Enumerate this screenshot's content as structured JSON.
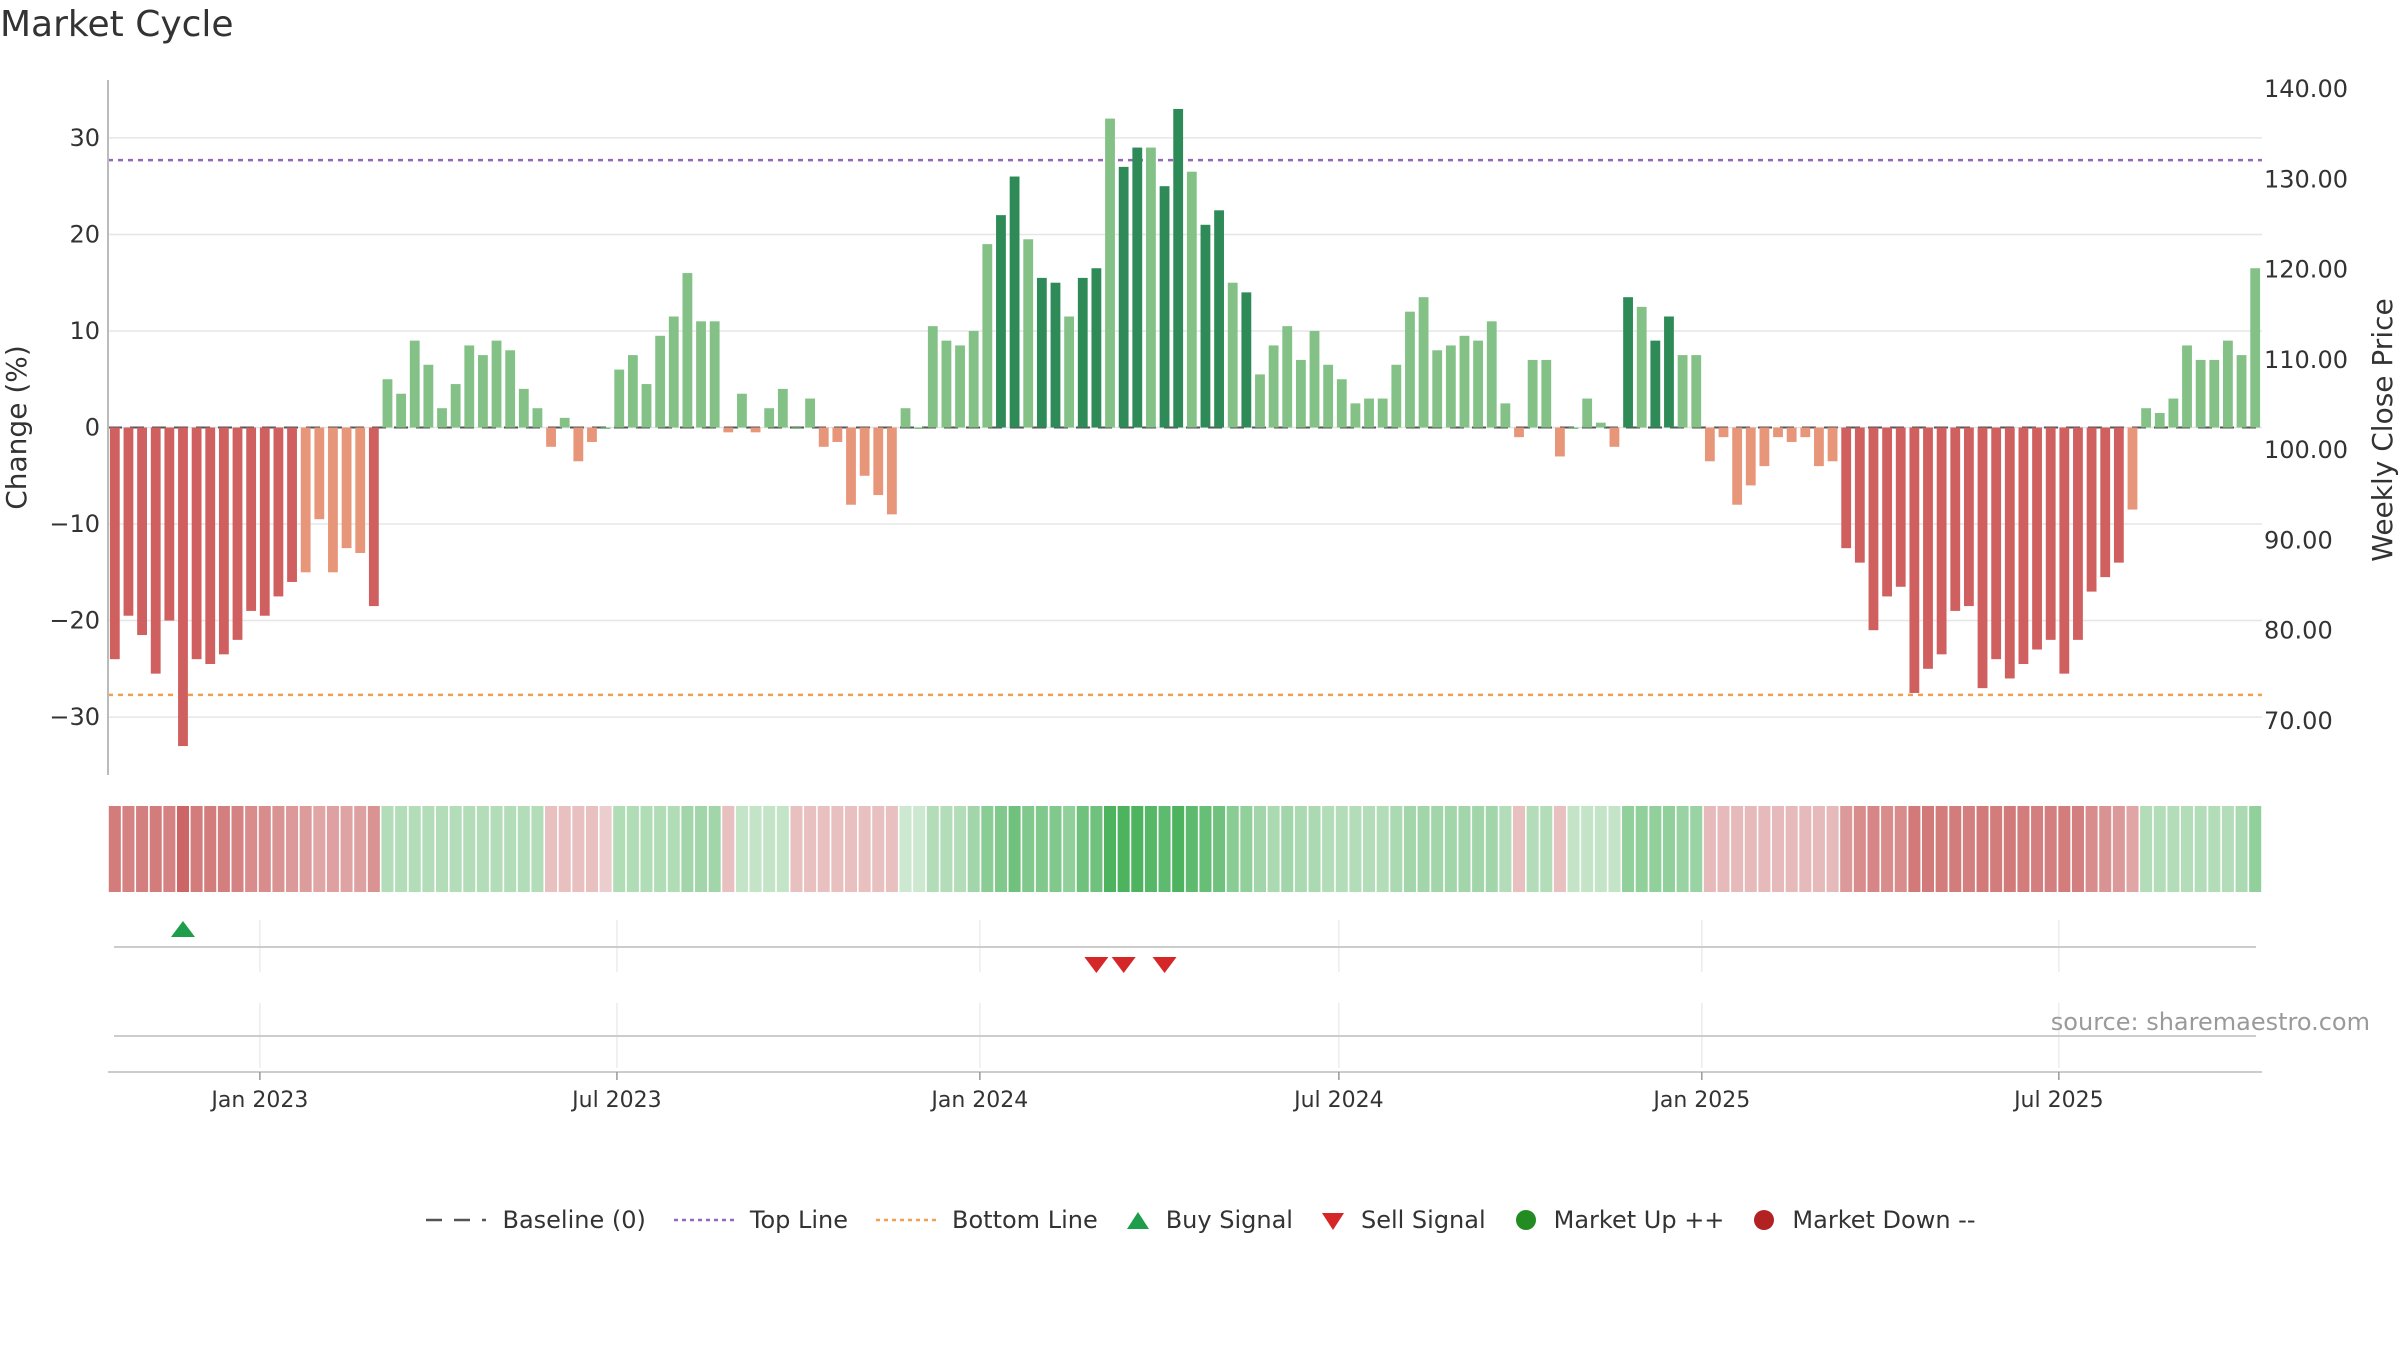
{
  "chart_data": {
    "type": "bar",
    "title": "Market Cycle",
    "ylabel": "Change (%)",
    "y2label": "Weekly Close Price",
    "ylim": [
      -36,
      36
    ],
    "y2lim": [
      64,
      141
    ],
    "yticks": [
      -30,
      -20,
      -10,
      0,
      10,
      20,
      30
    ],
    "yticklabels": [
      "−30",
      "−20",
      "−10",
      "0",
      "10",
      "20",
      "30"
    ],
    "y2ticks": [
      "70.00",
      "80.00",
      "90.00",
      "100.00",
      "110.00",
      "120.00",
      "130.00",
      "140.00"
    ],
    "top_line": 27.7,
    "bottom_line": -27.7,
    "x_start": "2022-10-16",
    "x_end": "2025-10-12",
    "xticks": [
      {
        "date": "2023-01-01",
        "label": "Jan 2023"
      },
      {
        "date": "2023-07-01",
        "label": "Jul 2023"
      },
      {
        "date": "2024-01-01",
        "label": "Jan 2024"
      },
      {
        "date": "2024-07-01",
        "label": "Jul 2024"
      },
      {
        "date": "2025-01-01",
        "label": "Jan 2025"
      },
      {
        "date": "2025-07-01",
        "label": "Jul 2025"
      }
    ],
    "grid": true,
    "legend_position": "bottom-center",
    "values": [
      -24,
      -19.5,
      -21.5,
      -25.5,
      -20,
      -33,
      -24,
      -24.5,
      -23.5,
      -22,
      -19,
      -19.5,
      -17.5,
      -16,
      -15,
      -9.5,
      -15,
      -12.5,
      -13,
      -18.5,
      5,
      3.5,
      9,
      6.5,
      2,
      4.5,
      8.5,
      7.5,
      9,
      8,
      4,
      2,
      -2,
      1,
      -3.5,
      -1.5,
      0,
      6,
      7.5,
      4.5,
      9.5,
      11.5,
      16,
      11,
      11,
      -0.5,
      3.5,
      -0.5,
      2,
      4,
      0,
      3,
      -2,
      -1.5,
      -8,
      -5,
      -7,
      -9,
      2,
      0,
      10.5,
      9,
      8.5,
      10,
      19,
      22,
      26,
      19.5,
      15.5,
      15,
      11.5,
      15.5,
      16.5,
      32,
      27,
      29,
      29,
      25,
      33,
      26.5,
      21,
      22.5,
      15,
      14,
      5.5,
      8.5,
      10.5,
      7,
      10,
      6.5,
      5,
      2.5,
      3,
      3,
      6.5,
      12,
      13.5,
      8,
      8.5,
      9.5,
      9,
      11,
      2.5,
      -1,
      7,
      7,
      -3,
      0,
      3,
      0.5,
      -2,
      13.5,
      12.5,
      9,
      11.5,
      7.5,
      7.5,
      -3.5,
      -1,
      -8,
      -6,
      -4,
      -1,
      -1.5,
      -1,
      -4,
      -3.5,
      -12.5,
      -14,
      -21,
      -17.5,
      -16.5,
      -27.5,
      -25,
      -23.5,
      -19,
      -18.5,
      -27,
      -24,
      -26,
      -24.5,
      -23,
      -22,
      -25.5,
      -22,
      -17,
      -15.5,
      -14,
      -8.5,
      2,
      1.5,
      3,
      8.5,
      7,
      7,
      9,
      7.5,
      16.5
    ],
    "strip_values": [
      -0.72,
      -0.68,
      -0.7,
      -0.72,
      -0.68,
      -0.9,
      -0.72,
      -0.72,
      -0.7,
      -0.68,
      -0.6,
      -0.6,
      -0.55,
      -0.5,
      -0.48,
      -0.4,
      -0.45,
      -0.42,
      -0.44,
      -0.55,
      0.3,
      0.3,
      0.3,
      0.3,
      0.3,
      0.3,
      0.3,
      0.3,
      0.3,
      0.3,
      0.3,
      0.3,
      -0.2,
      -0.2,
      -0.2,
      -0.2,
      -0.1,
      0.32,
      0.32,
      0.32,
      0.32,
      0.32,
      0.4,
      0.4,
      0.4,
      -0.2,
      0.2,
      0.2,
      0.2,
      0.2,
      -0.2,
      -0.2,
      -0.2,
      -0.2,
      -0.2,
      -0.2,
      -0.2,
      -0.2,
      0.15,
      0.15,
      0.3,
      0.3,
      0.3,
      0.4,
      0.55,
      0.6,
      0.7,
      0.6,
      0.6,
      0.6,
      0.5,
      0.7,
      0.7,
      0.9,
      0.9,
      0.9,
      0.85,
      0.8,
      0.9,
      0.8,
      0.75,
      0.7,
      0.55,
      0.5,
      0.4,
      0.35,
      0.4,
      0.35,
      0.35,
      0.3,
      0.3,
      0.3,
      0.3,
      0.3,
      0.35,
      0.4,
      0.4,
      0.4,
      0.4,
      0.4,
      0.4,
      0.4,
      0.3,
      -0.2,
      0.3,
      0.3,
      -0.2,
      0.2,
      0.2,
      0.2,
      0.2,
      0.5,
      0.5,
      0.5,
      0.5,
      0.45,
      0.45,
      -0.25,
      -0.25,
      -0.25,
      -0.25,
      -0.25,
      -0.25,
      -0.25,
      -0.25,
      -0.25,
      -0.25,
      -0.5,
      -0.6,
      -0.65,
      -0.6,
      -0.6,
      -0.75,
      -0.75,
      -0.72,
      -0.72,
      -0.7,
      -0.75,
      -0.72,
      -0.75,
      -0.72,
      -0.7,
      -0.7,
      -0.72,
      -0.7,
      -0.6,
      -0.55,
      -0.5,
      -0.4,
      0.3,
      0.3,
      0.3,
      0.3,
      0.3,
      0.3,
      0.3,
      0.35,
      0.5
    ],
    "buy_signals": [
      5
    ],
    "sell_signals": [
      72,
      74,
      77
    ],
    "source": "source: sharemaestro.com",
    "colors": {
      "pos_strong": "#2e8b57",
      "pos_weak": "#83c187",
      "neg_strong": "#d05f5f",
      "neg_weak": "#e8967a",
      "top_line": "#9467bd",
      "bottom_line": "#f0a050",
      "buy": "#1e9e4a",
      "sell": "#d62728",
      "market_up": "#228b22",
      "market_down": "#b22222",
      "baseline": "#555555"
    },
    "legend": [
      {
        "key": "baseline",
        "label": "Baseline (0)",
        "marker": "dash"
      },
      {
        "key": "top_line",
        "label": "Top Line",
        "marker": "dotted"
      },
      {
        "key": "bottom_line",
        "label": "Bottom Line",
        "marker": "dotted"
      },
      {
        "key": "buy",
        "label": "Buy Signal",
        "marker": "triangle-up"
      },
      {
        "key": "sell",
        "label": "Sell Signal",
        "marker": "triangle-down"
      },
      {
        "key": "market_up",
        "label": "Market Up ++",
        "marker": "circle"
      },
      {
        "key": "market_down",
        "label": "Market Down --",
        "marker": "circle"
      }
    ]
  }
}
